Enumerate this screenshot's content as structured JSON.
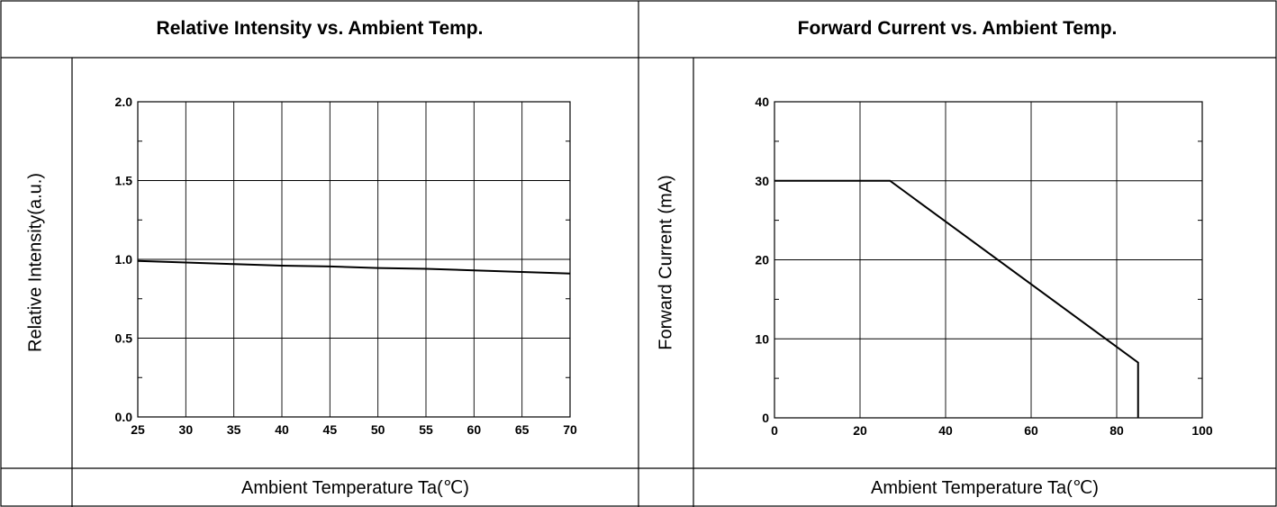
{
  "chart_data": [
    {
      "type": "line",
      "title": "Relative Intensity vs. Ambient Temp.",
      "xlabel": "Ambient Temperature Ta(℃)",
      "ylabel": "Relative Intensity(a.u.)",
      "xlim": [
        25,
        70
      ],
      "ylim": [
        0,
        2.0
      ],
      "x_ticks": [
        "25",
        "30",
        "35",
        "40",
        "45",
        "50",
        "55",
        "60",
        "65",
        "70"
      ],
      "y_ticks": [
        "0.0",
        "0.5",
        "1.0",
        "1.5",
        "2.0"
      ],
      "grid": true,
      "series": [
        {
          "x": [
            25,
            30,
            35,
            40,
            45,
            50,
            55,
            60,
            65,
            70
          ],
          "y": [
            0.99,
            0.98,
            0.97,
            0.96,
            0.955,
            0.945,
            0.94,
            0.93,
            0.92,
            0.91
          ]
        }
      ]
    },
    {
      "type": "line",
      "title": "Forward Current vs. Ambient Temp.",
      "xlabel": "Ambient Temperature Ta(℃)",
      "ylabel": "Forward Current (mA)",
      "xlim": [
        0,
        100
      ],
      "ylim": [
        0,
        40
      ],
      "x_ticks": [
        "0",
        "20",
        "40",
        "60",
        "80",
        "100"
      ],
      "y_ticks": [
        "0",
        "10",
        "20",
        "30",
        "40"
      ],
      "grid": true,
      "series": [
        {
          "x": [
            0,
            27,
            85,
            85
          ],
          "y": [
            30,
            30,
            7,
            0
          ]
        }
      ]
    }
  ],
  "style": {
    "line_color": "#000000",
    "grid_color": "#000000",
    "border_color": "#000000"
  }
}
